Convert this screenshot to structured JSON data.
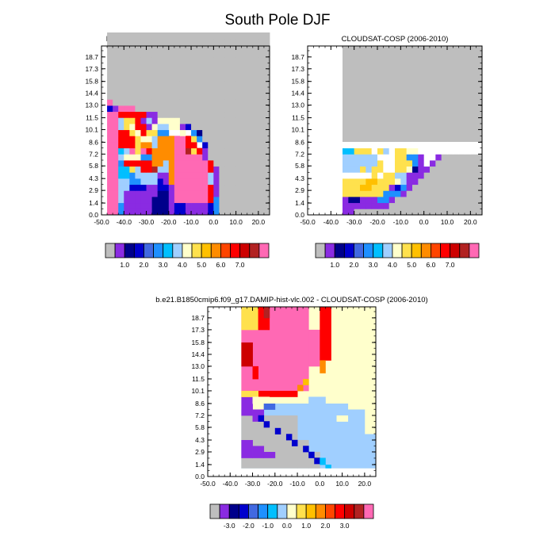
{
  "figure": {
    "title": "South Pole DJF"
  },
  "palettes": {
    "abs": [
      "#bebebe",
      "#8a2be2",
      "#00008b",
      "#0000cd",
      "#4169e1",
      "#1e90ff",
      "#00bfff",
      "#a0cfff",
      "#ffffcc",
      "#ffe14d",
      "#ffc000",
      "#ff8c00",
      "#ff4500",
      "#ff0000",
      "#cd0000",
      "#b22222",
      "#ff69b4"
    ],
    "diff": [
      "#bebebe",
      "#8a2be2",
      "#00008b",
      "#0000cd",
      "#4169e1",
      "#1e90ff",
      "#00bfff",
      "#a0cfff",
      "#ffffcc",
      "#ffe14d",
      "#ffc000",
      "#ff8c00",
      "#ff4500",
      "#ff0000",
      "#cd0000",
      "#b22222",
      "#ff69b4"
    ]
  },
  "chart_data": [
    {
      "type": "heatmap",
      "id": "p1",
      "title": "b.e21.B1850cmip6.f09_g17.DAMIP-hist-vlc.002",
      "x_ticks": [
        "-50.0",
        "-40.0",
        "-30.0",
        "-20.0",
        "-10.0",
        "0.0",
        "10.0",
        "20.0"
      ],
      "x_tick_values": [
        -50,
        -40,
        -30,
        -20,
        -10,
        0,
        10,
        20
      ],
      "y_ticks": [
        "0.0",
        "1.4",
        "2.9",
        "4.3",
        "5.8",
        "7.2",
        "8.6",
        "10.1",
        "11.5",
        "13.0",
        "14.4",
        "15.8",
        "17.3",
        "18.7"
      ],
      "xlim": [
        -50,
        25
      ],
      "ylim": [
        0,
        20
      ],
      "colorbar_labels": [
        "1.0",
        "2.0",
        "3.0",
        "4.0",
        "5.0",
        "6.0",
        "7.0"
      ],
      "colorbar_palette": "abs",
      "x_start": -47.5,
      "dx": 2.5,
      "y_start": 0,
      "dy": 0.72,
      "grid": [
        "GGGGGGGGGGGGGGGGGGGGGGGGGGGGGG",
        "GGGGGGGGGGGGGGGGGGGGGGGGGGGGGG",
        "GGGGGGGGGGGGGGGGGGGGGGGGGGGGGG",
        "GGGGGGGGGGGGGGGGGGGGGGGGGGGGGG",
        "GGGGGGGGGGGGGGGGGGGGGGGGGGGGGG",
        "GGGGGGGGGGGGGGGGGGGGGGGGGGGGGG",
        "GGGGGGGGGGGGGGGGGGGGGGGGGGGGGG",
        "GGGGGGGGGGGGGGGGGGGGGGGGGGGGGG",
        "GGGGGGGGGGGGGGGGGGGGGGGGGGGGGG",
        "GGGGGGGGGGGGGGGGGGGGGGGGGGGGGG",
        "GGGGGGGGGGGGGGGGGGGGGGGGGGGGGG",
        "PGGGGGGGGGGGGGGGGGGGGGGGGGGGGG",
        "DMPPPGGGGGGGGGGGGGGGGGGGGGGGGG",
        "PPRRRRRMMGGGGGGGGGGGGGGGGGGGGG",
        "PPAYYRMAMLLLLGGGGGGGGGGGGGGGGG",
        "PPAYLRRMLAALLMDGGGGGGGGGGGGGGG",
        "PPRRYLRYYBBWWLWBNGGGGGGGGGGGGG",
        "PPRRRYLLAHHHPPRYBGGGGGGGGGGGGG",
        "PPRRRYHHAHHHPPRRWDGGGGGGGGGGGG",
        "PPCAPYPRHHHHPPKYRMGGGGGGGGGGGG",
        "PPALLLBBHHHHPPPPPMGGGGGGGGGGGG",
        "PPBRRRRRHHAHPPPPPPRGGGGGGGGGGG",
        "PPCCYARRKAAHPPPPPPRMGGGGGGGGGG",
        "PPCCBAAAAMMHPPPPPPAMGGGGGGGGGG",
        "PPAABBAAADMHPPPPPPAMGGGGGGGGGG",
        "PPAADDDMMDDMPPPPPPRMGGGGGGGGGG",
        "PPAMMMMMMNNMPPPPPPRMGGGGGGGGGG",
        "PPAMMMMMNNNMPPPPPPRBGGGGGGGGGG",
        "PPBMMMMMNNNMDDMMMMDBGGGGGGGGGG",
        "PPBMMMMMNNNMDDMMMMDBGGGGGGGGGG"
      ],
      "legend": {
        "G": "below-1",
        "M": "1.0",
        "N": "1.5",
        "D": "2.0",
        "E": "2.2",
        "B": "2.5",
        "C": "3.0",
        "A": "3.5",
        "L": "4.0",
        "W": "4.0w",
        "Y": "5.0",
        "O": "5.5",
        "H": "6.0",
        "R": "6.5",
        "K": "7.0",
        "P": "7.5"
      }
    },
    {
      "type": "heatmap",
      "id": "p2",
      "title": "CLOUDSAT-COSP (2006-2010)",
      "x_ticks": [
        "-50.0",
        "-40.0",
        "-30.0",
        "-20.0",
        "-10.0",
        "0.0",
        "10.0",
        "20.0"
      ],
      "x_tick_values": [
        -50,
        -40,
        -30,
        -20,
        -10,
        0,
        10,
        20
      ],
      "y_ticks": [
        "0.0",
        "1.4",
        "2.9",
        "4.3",
        "5.8",
        "7.2",
        "8.6",
        "10.1",
        "11.5",
        "13.0",
        "14.4",
        "15.8",
        "17.3",
        "18.7"
      ],
      "xlim": [
        -50,
        25
      ],
      "ylim": [
        0,
        20
      ],
      "colorbar_labels": [
        "1.0",
        "2.0",
        "3.0",
        "4.0",
        "5.0",
        "6.0",
        "7.0"
      ],
      "colorbar_palette": "abs",
      "x_start": -35,
      "dx": 2.5,
      "y_start": 0,
      "dy": 0.72,
      "grid": [
        "WWWWWWWWWWWWWWWWWWWWWWWWWWWW",
        "CCYYYWYAWYYLLWWWWWWWWWWWWWWW",
        "AAAAAAWWWYYBBMWWMGGGGGGGGGGG",
        "AAAAAAYWWYYYBMWMGGGGGGGGGGGG",
        "AAAYAYYWWYYLNMMGGGGGGGGGGGGG",
        "WWWWWYWYYAAMMMGGGGGGGGGGGGGG",
        "YYYYOOYYYLAMMGGGGGGGGGGGGGGG",
        "YYYOOYYYMDBMGGGGGGGGGGGGGGGG",
        "YYYYYYYBBBMGGGGGGGGGGGGGGGGG",
        "MNNMMMBBMGGGGGGGGGGGGGGGGGGG",
        "MMMMMMMMGGGGGGGGGGGGGGGGGGGG",
        "MMGGGGGGGGGGGGGGGGGGGGGGGGGG"
      ],
      "legend": {
        "G": "below-1",
        "M": "1.0",
        "N": "1.5",
        "D": "2.0",
        "B": "2.5",
        "A": "3.5",
        "L": "4.0",
        "W": "4.0w",
        "Y": "5.0",
        "O": "5.5",
        "R": "6.5",
        "P": "7.5"
      }
    },
    {
      "type": "heatmap",
      "id": "p3",
      "title": "b.e21.B1850cmip6.f09_g17.DAMIP-hist-vlc.002 - CLOUDSAT-COSP (2006-2010)",
      "x_ticks": [
        "-50.0",
        "-40.0",
        "-30.0",
        "-20.0",
        "-10.0",
        "0.0",
        "10.0",
        "20.0"
      ],
      "x_tick_values": [
        -50,
        -40,
        -30,
        -20,
        -10,
        0,
        10,
        20
      ],
      "y_ticks": [
        "0.0",
        "1.4",
        "2.9",
        "4.3",
        "5.8",
        "7.2",
        "8.6",
        "10.1",
        "11.5",
        "13.0",
        "14.4",
        "15.8",
        "17.3",
        "18.7"
      ],
      "xlim": [
        -50,
        25
      ],
      "ylim": [
        0,
        20
      ],
      "colorbar_labels": [
        "-3.0",
        "-2.0",
        "-1.0",
        "0.0",
        "1.0",
        "2.0",
        "3.0"
      ],
      "colorbar_palette": "diff",
      "note": "difference panel"
    }
  ]
}
